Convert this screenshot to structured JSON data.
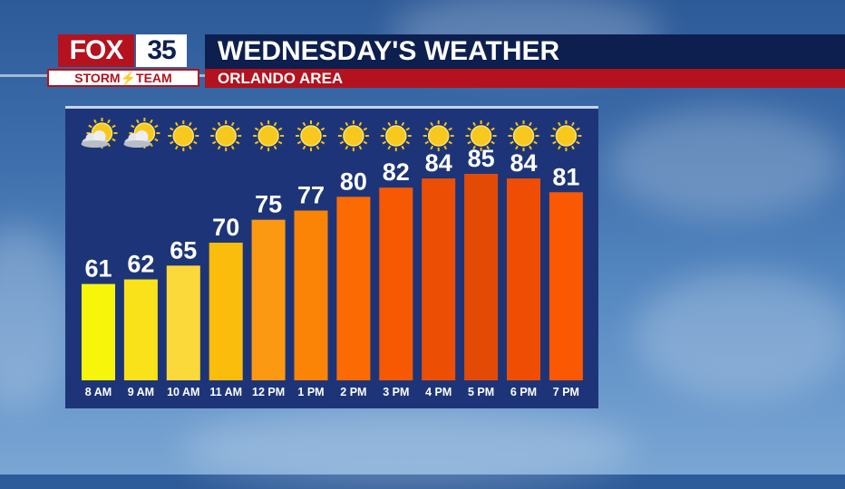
{
  "brand": {
    "logo_fox": "FOX",
    "logo_number": "35",
    "logo_team": "STORM⚡TEAM"
  },
  "header": {
    "title": "WEDNESDAY'S WEATHER",
    "subtitle": "ORLANDO AREA"
  },
  "colors": {
    "navy": "#0d1f4f",
    "red": "#b3121e",
    "panel": "#1d3578"
  },
  "chart_data": {
    "type": "bar",
    "title": "",
    "xlabel": "",
    "ylabel": "",
    "grid": false,
    "categories": [
      "8 AM",
      "9 AM",
      "10 AM",
      "11 AM",
      "12 PM",
      "1 PM",
      "2 PM",
      "3 PM",
      "4 PM",
      "5 PM",
      "6 PM",
      "7 PM"
    ],
    "values": [
      61,
      62,
      65,
      70,
      75,
      77,
      80,
      82,
      84,
      85,
      84,
      81
    ],
    "bar_colors": [
      "#f7f50a",
      "#f9e219",
      "#fcd93a",
      "#fbbd0c",
      "#fb9912",
      "#fb8407",
      "#fc6b03",
      "#f75903",
      "#ec4e03",
      "#e34a05",
      "#f04d04",
      "#fa5802"
    ],
    "icons": [
      "partly-cloudy-icon",
      "partly-cloudy-icon",
      "sun-icon",
      "sun-icon",
      "sun-icon",
      "sun-icon",
      "sun-icon",
      "sun-icon",
      "sun-icon",
      "sun-icon",
      "sun-icon",
      "sun-icon"
    ],
    "ylim": [
      40,
      100
    ]
  }
}
